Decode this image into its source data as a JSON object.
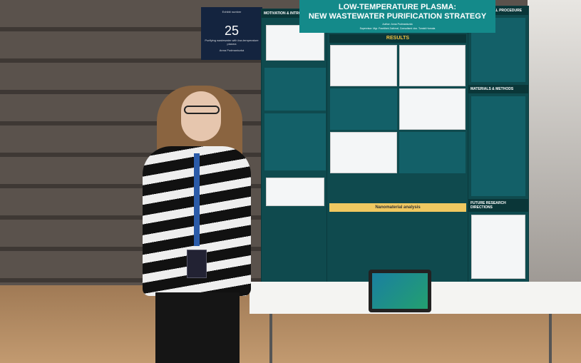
{
  "sign": {
    "label": "Exhibit number",
    "number": "25",
    "caption": "Purifying wastewater with low-temperature plasma",
    "author": "Anna Podmaniczká"
  },
  "poster": {
    "title_line1": "LOW-TEMPERATURE PLASMA:",
    "title_line2": "NEW WASTEWATER PURIFICATION STRATEGY",
    "author": "Author: Anna Podmaniczká",
    "supervisor": "Supervisor: Mgr. František Zažímal, Consultant: doc. Tomáš Homola",
    "left_header": "MOTIVATION & INTRODUCTION",
    "results_header": "RESULTS",
    "nano_header": "Nanomaterial analysis",
    "right_header1": "EXPERIMENTAL PROCEDURE",
    "right_header2": "MATERIALS & METHODS",
    "right_header3": "FUTURE RESEARCH DIRECTIONS"
  },
  "colors": {
    "poster_bg": "#0f4a4e",
    "title_bg": "#148a8a",
    "accent": "#f0c040"
  }
}
